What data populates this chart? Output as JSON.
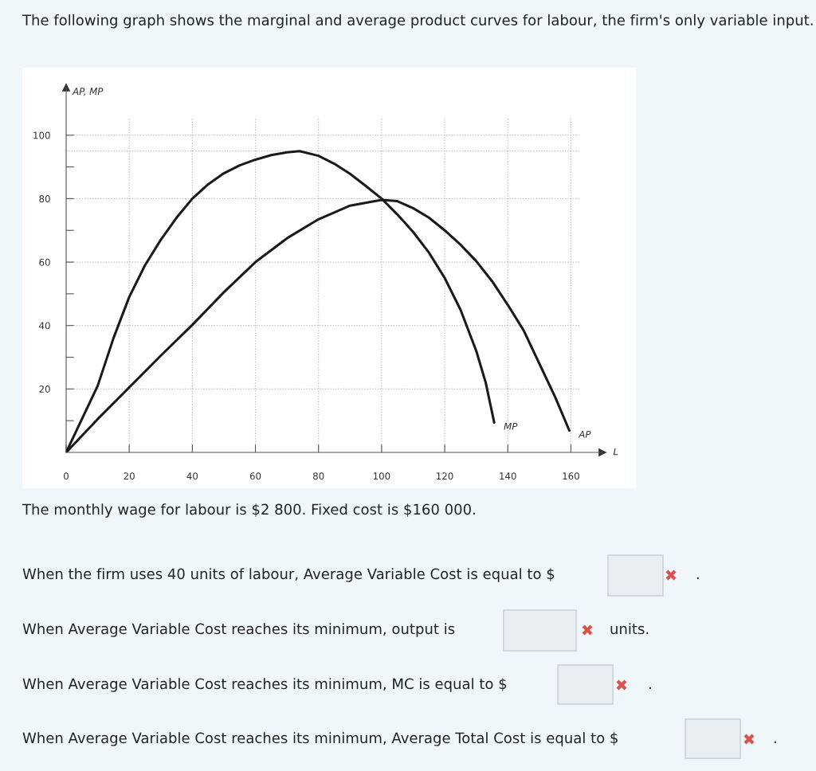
{
  "chart_data": {
    "type": "line",
    "title": "The following graph shows the marginal and average product curves for labour, the firm's only variable input.",
    "xlabel": "L",
    "ylabel": "AP, MP",
    "series": [
      {
        "name": "MP",
        "color": "#1a1a1a",
        "x": [
          0,
          5,
          10,
          15,
          20,
          25,
          30,
          35,
          40,
          45,
          50,
          55,
          60,
          65,
          70,
          74,
          80,
          85,
          90,
          95,
          100,
          105,
          110,
          115,
          120,
          125,
          130,
          133,
          135.7
        ],
        "values": [
          0,
          10.5,
          21,
          36,
          49,
          59,
          67,
          74,
          80,
          84.5,
          88,
          90.5,
          92.3,
          93.7,
          94.6,
          95,
          93.5,
          91,
          87.8,
          84,
          80,
          75,
          69.5,
          63,
          55,
          45,
          32,
          22,
          9.4
        ]
      },
      {
        "name": "AP",
        "color": "#1a1a1a",
        "x": [
          0,
          10,
          20,
          30,
          40,
          50,
          60,
          70,
          80,
          90,
          100,
          105,
          110,
          115,
          120,
          125,
          130,
          135,
          140,
          145,
          150,
          155,
          159.5
        ],
        "values": [
          0,
          10.5,
          20.5,
          30.5,
          40.2,
          50.5,
          60,
          67.5,
          73.5,
          77.8,
          79.6,
          79.2,
          77,
          74,
          70,
          65.5,
          60.3,
          54,
          46.5,
          38.5,
          28,
          17.5,
          6.9
        ]
      }
    ],
    "xlim": [
      0,
      170
    ],
    "ylim": [
      0,
      115
    ],
    "xticks": [
      0,
      20,
      40,
      60,
      80,
      100,
      120,
      140,
      160
    ],
    "yticks": [
      20,
      {
        "value": 10,
        "label": null
      },
      40,
      {
        "value": 30,
        "label": null
      },
      60,
      {
        "value": 50,
        "label": null
      },
      80,
      {
        "value": 70,
        "label": null
      },
      100,
      {
        "value": 90,
        "label": null
      }
    ],
    "grid": true,
    "ref_lines": [
      {
        "axis": "y",
        "value": 95,
        "label": null,
        "color": "#bbbbbb",
        "line_style": "dotted"
      }
    ],
    "line_style": "solid",
    "marker": "none",
    "annotations": [
      "The monthly wage for labour is $2 800. Fixed cost is $160 000.",
      "When the firm uses 40 units of labour, Average Variable Cost is equal to $",
      "When Average Variable Cost reaches its minimum, output is",
      "units.",
      "When Average Variable Cost reaches its minimum, MC is equal to $",
      "When Average Variable Cost reaches its minimum, Average Total Cost is equal to $",
      ".",
      ".",
      "."
    ]
  }
}
